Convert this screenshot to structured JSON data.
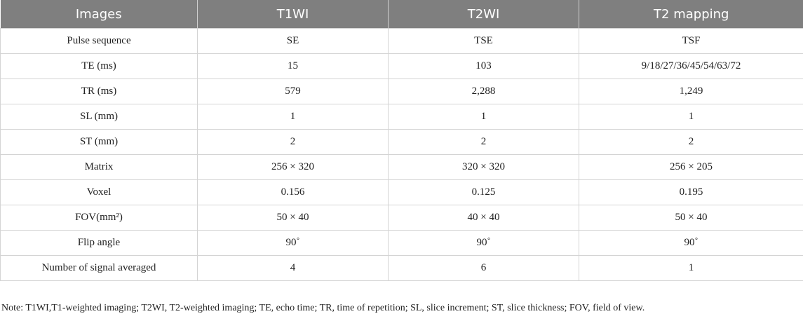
{
  "table": {
    "header": [
      "Images",
      "T1WI",
      "T2WI",
      "T2 mapping"
    ],
    "rows": [
      [
        "Pulse sequence",
        "SE",
        "TSE",
        "TSF"
      ],
      [
        "TE (ms)",
        "15",
        "103",
        "9/18/27/36/45/54/63/72"
      ],
      [
        "TR (ms)",
        "579",
        "2,288",
        "1,249"
      ],
      [
        "SL (mm)",
        "1",
        "1",
        "1"
      ],
      [
        "ST (mm)",
        "2",
        "2",
        "2"
      ],
      [
        "Matrix",
        "256 × 320",
        "320 × 320",
        "256 × 205"
      ],
      [
        "Voxel",
        "0.156",
        "0.125",
        "0.195"
      ],
      [
        "FOV(mm²)",
        "50 × 40",
        "40 × 40",
        "50 × 40"
      ],
      [
        "Flip angle",
        "90˚",
        "90˚",
        "90˚"
      ],
      [
        "Number of signal averaged",
        "4",
        "6",
        "1"
      ]
    ]
  },
  "note": "Note: T1WI,T1-weighted imaging; T2WI, T2-weighted imaging; TE, echo time; TR, time of repetition; SL, slice increment; ST, slice thickness; FOV, field of view."
}
